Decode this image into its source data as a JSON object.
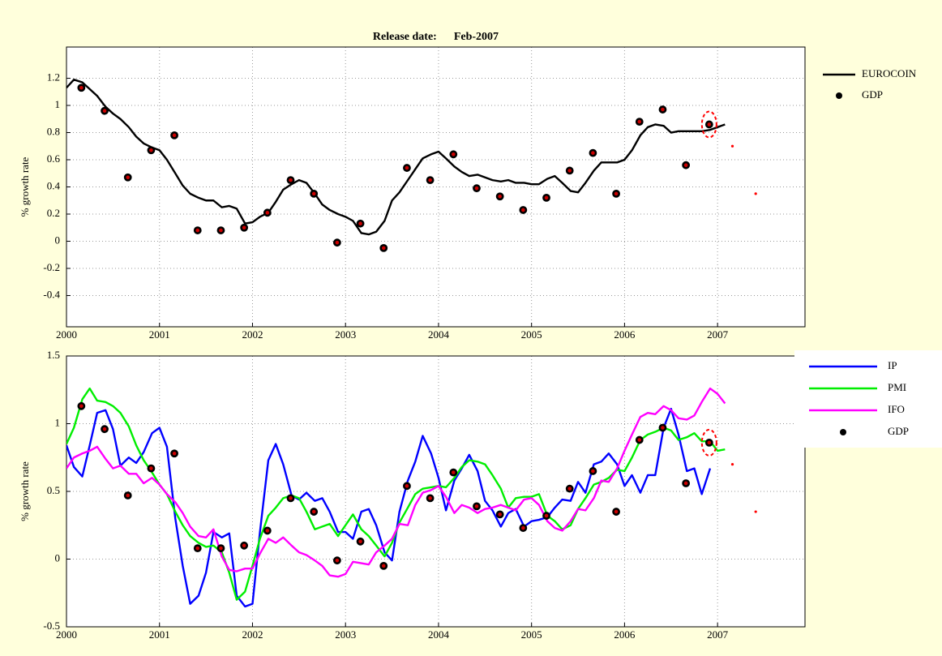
{
  "chart_data": [
    {
      "type": "line",
      "title": "Release date:      Feb-2007",
      "ylabel": "% growth rate",
      "xlim": [
        2000,
        2007.94
      ],
      "xticks": [
        2000,
        2001,
        2002,
        2003,
        2004,
        2005,
        2006,
        2007
      ],
      "ylim": [
        -0.63,
        1.43
      ],
      "yticks": [
        -0.4,
        -0.2,
        0,
        0.2,
        0.4,
        0.6,
        0.8,
        1,
        1.2
      ],
      "grid": true,
      "legend": "outside-right",
      "x": [
        2000,
        2000.08,
        2000.17,
        2000.25,
        2000.33,
        2000.42,
        2000.5,
        2000.58,
        2000.67,
        2000.75,
        2000.83,
        2000.92,
        2001,
        2001.08,
        2001.17,
        2001.25,
        2001.33,
        2001.42,
        2001.5,
        2001.58,
        2001.67,
        2001.75,
        2001.83,
        2001.92,
        2002,
        2002.08,
        2002.17,
        2002.25,
        2002.33,
        2002.42,
        2002.5,
        2002.58,
        2002.67,
        2002.75,
        2002.83,
        2002.92,
        2003,
        2003.08,
        2003.17,
        2003.25,
        2003.33,
        2003.42,
        2003.5,
        2003.58,
        2003.67,
        2003.75,
        2003.83,
        2003.92,
        2004,
        2004.08,
        2004.17,
        2004.25,
        2004.33,
        2004.42,
        2004.5,
        2004.58,
        2004.67,
        2004.75,
        2004.83,
        2004.92,
        2005,
        2005.08,
        2005.17,
        2005.25,
        2005.33,
        2005.42,
        2005.5,
        2005.58,
        2005.67,
        2005.75,
        2005.83,
        2005.92,
        2006,
        2006.08,
        2006.17,
        2006.25,
        2006.33,
        2006.42,
        2006.5,
        2006.58,
        2006.67,
        2006.75,
        2006.83,
        2006.92,
        2007,
        2007.08
      ],
      "series": [
        {
          "name": "EUROCOIN",
          "color": "#000000",
          "values": [
            1.13,
            1.19,
            1.17,
            1.12,
            1.07,
            0.99,
            0.94,
            0.9,
            0.84,
            0.77,
            0.72,
            0.69,
            0.67,
            0.6,
            0.5,
            0.41,
            0.35,
            0.32,
            0.3,
            0.3,
            0.25,
            0.26,
            0.24,
            0.13,
            0.14,
            0.18,
            0.21,
            0.29,
            0.38,
            0.42,
            0.45,
            0.43,
            0.35,
            0.27,
            0.23,
            0.2,
            0.18,
            0.15,
            0.06,
            0.05,
            0.07,
            0.15,
            0.3,
            0.36,
            0.45,
            0.53,
            0.61,
            0.64,
            0.66,
            0.61,
            0.55,
            0.51,
            0.48,
            0.49,
            0.47,
            0.45,
            0.44,
            0.45,
            0.43,
            0.43,
            0.42,
            0.42,
            0.46,
            0.48,
            0.43,
            0.37,
            0.36,
            0.43,
            0.52,
            0.58,
            0.58,
            0.58,
            0.6,
            0.67,
            0.78,
            0.84,
            0.86,
            0.85,
            0.8,
            0.81,
            0.81,
            0.81,
            0.81,
            0.82,
            0.84,
            0.86
          ]
        },
        {
          "name": "GDP",
          "color": "#000000",
          "marker_color": "#cc0000",
          "type": "scatter",
          "x": [
            2000.16,
            2000.41,
            2000.66,
            2000.91,
            2001.16,
            2001.41,
            2001.66,
            2001.91,
            2002.16,
            2002.41,
            2002.66,
            2002.91,
            2003.16,
            2003.41,
            2003.66,
            2003.91,
            2004.16,
            2004.41,
            2004.66,
            2004.91,
            2005.16,
            2005.41,
            2005.66,
            2005.91,
            2006.16,
            2006.41,
            2006.66,
            2006.91
          ],
          "values": [
            1.13,
            0.96,
            0.47,
            0.67,
            0.78,
            0.08,
            0.08,
            0.1,
            0.21,
            0.45,
            0.35,
            -0.01,
            0.13,
            -0.05,
            0.54,
            0.45,
            0.64,
            0.39,
            0.33,
            0.23,
            0.32,
            0.52,
            0.65,
            0.35,
            0.88,
            0.97,
            0.56,
            0.86
          ]
        }
      ],
      "extra_points": {
        "color": "#ff0000",
        "x": [
          2007.16,
          2007.41
        ],
        "values": [
          0.7,
          0.35
        ]
      }
    },
    {
      "type": "line",
      "ylabel": "% growth rate",
      "xlim": [
        2000,
        2007.94
      ],
      "xticks": [
        2000,
        2001,
        2002,
        2003,
        2004,
        2005,
        2006,
        2007
      ],
      "ylim": [
        -0.5,
        1.5
      ],
      "yticks": [
        -0.5,
        0,
        0.5,
        1,
        1.5
      ],
      "grid": true,
      "legend": "outside-right",
      "legend_box": true,
      "x": [
        2000,
        2000.08,
        2000.17,
        2000.25,
        2000.33,
        2000.42,
        2000.5,
        2000.58,
        2000.67,
        2000.75,
        2000.83,
        2000.92,
        2001,
        2001.08,
        2001.17,
        2001.25,
        2001.33,
        2001.42,
        2001.5,
        2001.58,
        2001.67,
        2001.75,
        2001.83,
        2001.92,
        2002,
        2002.08,
        2002.17,
        2002.25,
        2002.33,
        2002.42,
        2002.5,
        2002.58,
        2002.67,
        2002.75,
        2002.83,
        2002.92,
        2003,
        2003.08,
        2003.17,
        2003.25,
        2003.33,
        2003.42,
        2003.5,
        2003.58,
        2003.67,
        2003.75,
        2003.83,
        2003.92,
        2004,
        2004.08,
        2004.17,
        2004.25,
        2004.33,
        2004.42,
        2004.5,
        2004.58,
        2004.67,
        2004.75,
        2004.83,
        2004.92,
        2005,
        2005.08,
        2005.17,
        2005.25,
        2005.33,
        2005.42,
        2005.5,
        2005.58,
        2005.67,
        2005.75,
        2005.83,
        2005.92,
        2006,
        2006.08,
        2006.17,
        2006.25,
        2006.33,
        2006.42,
        2006.5,
        2006.58,
        2006.67,
        2006.75,
        2006.83,
        2006.92,
        2007,
        2007.08
      ],
      "series": [
        {
          "name": "IP",
          "color": "#0000ff",
          "values": [
            0.84,
            0.68,
            0.61,
            0.84,
            1.08,
            1.1,
            0.96,
            0.69,
            0.75,
            0.71,
            0.79,
            0.93,
            0.97,
            0.83,
            0.3,
            -0.05,
            -0.33,
            -0.27,
            -0.1,
            0.2,
            0.16,
            0.19,
            -0.27,
            -0.35,
            -0.33,
            0.2,
            0.73,
            0.85,
            0.7,
            0.47,
            0.44,
            0.49,
            0.43,
            0.45,
            0.35,
            0.2,
            0.2,
            0.15,
            0.35,
            0.37,
            0.25,
            0.05,
            -0.01,
            0.35,
            0.58,
            0.72,
            0.91,
            0.78,
            0.6,
            0.36,
            0.58,
            0.67,
            0.77,
            0.65,
            0.43,
            0.36,
            0.24,
            0.34,
            0.37,
            0.24,
            0.28,
            0.29,
            0.31,
            0.38,
            0.44,
            0.43,
            0.57,
            0.49,
            0.7,
            0.72,
            0.78,
            0.7,
            0.54,
            0.62,
            0.49,
            0.62,
            0.62,
            0.97,
            1.11,
            0.92,
            0.65,
            0.67,
            0.48,
            0.67,
            null,
            null
          ]
        },
        {
          "name": "PMI",
          "color": "#00ee00",
          "values": [
            0.85,
            0.97,
            1.18,
            1.26,
            1.17,
            1.16,
            1.13,
            1.08,
            0.98,
            0.84,
            0.73,
            0.64,
            0.55,
            0.48,
            0.35,
            0.25,
            0.17,
            0.12,
            0.09,
            0.1,
            0.05,
            -0.1,
            -0.3,
            -0.24,
            -0.05,
            0.15,
            0.32,
            0.38,
            0.45,
            0.47,
            0.45,
            0.35,
            0.22,
            0.24,
            0.26,
            0.17,
            0.25,
            0.33,
            0.22,
            0.17,
            0.1,
            0.02,
            0.12,
            0.27,
            0.38,
            0.48,
            0.52,
            0.53,
            0.54,
            0.53,
            0.6,
            0.68,
            0.73,
            0.72,
            0.7,
            0.62,
            0.52,
            0.38,
            0.45,
            0.46,
            0.46,
            0.48,
            0.32,
            0.28,
            0.22,
            0.25,
            0.37,
            0.45,
            0.55,
            0.57,
            0.6,
            0.66,
            0.65,
            0.75,
            0.88,
            0.92,
            0.94,
            0.97,
            0.95,
            0.88,
            0.9,
            0.93,
            0.87,
            0.87,
            0.8,
            0.81
          ]
        },
        {
          "name": "IFO",
          "color": "#ff00ff",
          "values": [
            0.67,
            0.75,
            0.78,
            0.8,
            0.83,
            0.74,
            0.67,
            0.69,
            0.63,
            0.63,
            0.56,
            0.6,
            0.55,
            0.48,
            0.42,
            0.34,
            0.24,
            0.17,
            0.16,
            0.22,
            0.02,
            -0.08,
            -0.09,
            -0.07,
            -0.07,
            0.04,
            0.15,
            0.12,
            0.16,
            0.1,
            0.05,
            0.03,
            -0.01,
            -0.05,
            -0.12,
            -0.13,
            -0.11,
            -0.02,
            -0.03,
            -0.04,
            0.05,
            0.1,
            0.15,
            0.26,
            0.25,
            0.4,
            0.49,
            0.51,
            0.54,
            0.46,
            0.34,
            0.4,
            0.38,
            0.34,
            0.37,
            0.38,
            0.4,
            0.38,
            0.36,
            0.44,
            0.45,
            0.4,
            0.28,
            0.23,
            0.21,
            0.28,
            0.37,
            0.36,
            0.45,
            0.58,
            0.57,
            0.67,
            0.8,
            0.92,
            1.05,
            1.08,
            1.07,
            1.13,
            1.1,
            1.04,
            1.03,
            1.06,
            1.16,
            1.26,
            1.22,
            1.15
          ]
        },
        {
          "name": "GDP",
          "color": "#000000",
          "marker_color": "#cc0000",
          "type": "scatter",
          "x": [
            2000.16,
            2000.41,
            2000.66,
            2000.91,
            2001.16,
            2001.41,
            2001.66,
            2001.91,
            2002.16,
            2002.41,
            2002.66,
            2002.91,
            2003.16,
            2003.41,
            2003.66,
            2003.91,
            2004.16,
            2004.41,
            2004.66,
            2004.91,
            2005.16,
            2005.41,
            2005.66,
            2005.91,
            2006.16,
            2006.41,
            2006.66,
            2006.91
          ],
          "values": [
            1.13,
            0.96,
            0.47,
            0.67,
            0.78,
            0.08,
            0.08,
            0.1,
            0.21,
            0.45,
            0.35,
            -0.01,
            0.13,
            -0.05,
            0.54,
            0.45,
            0.64,
            0.39,
            0.33,
            0.23,
            0.32,
            0.52,
            0.65,
            0.35,
            0.88,
            0.97,
            0.56,
            0.86
          ]
        }
      ],
      "extra_points": {
        "color": "#ff0000",
        "x": [
          2007.16,
          2007.41
        ],
        "values": [
          0.7,
          0.35
        ]
      }
    }
  ]
}
